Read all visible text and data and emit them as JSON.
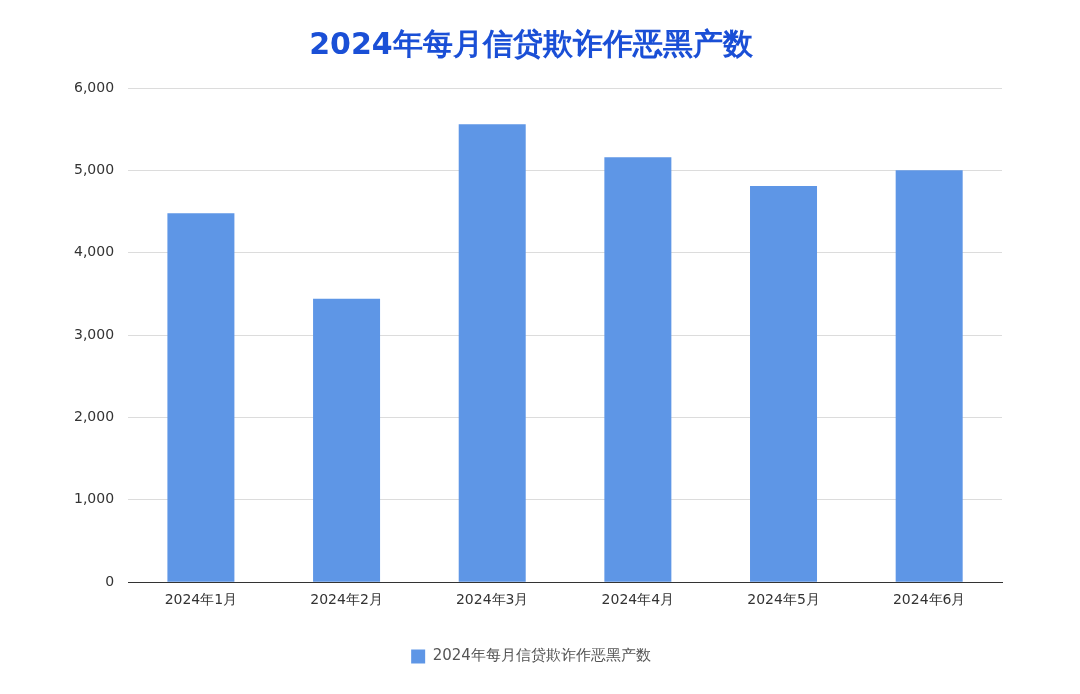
{
  "chart_data": {
    "type": "bar",
    "title": "2024年每月信贷欺诈作恶黑产数",
    "categories": [
      "2024年1月",
      "2024年2月",
      "2024年3月",
      "2024年4月",
      "2024年5月",
      "2024年6月"
    ],
    "series": [
      {
        "name": "2024年每月信贷欺诈作恶黑产数",
        "color": "#5e96e6",
        "values": [
          4480,
          3440,
          5560,
          5160,
          4810,
          5000
        ]
      }
    ],
    "ylim": [
      0,
      6000
    ],
    "yticks": [
      {
        "value": 0,
        "label": "0"
      },
      {
        "value": 1000,
        "label": "1,000"
      },
      {
        "value": 2000,
        "label": "2,000"
      },
      {
        "value": 3000,
        "label": "3,000"
      },
      {
        "value": 4000,
        "label": "4,000"
      },
      {
        "value": 5000,
        "label": "5,000"
      },
      {
        "value": 6000,
        "label": "6,000"
      }
    ],
    "grid": "y",
    "legend": "bottom"
  }
}
